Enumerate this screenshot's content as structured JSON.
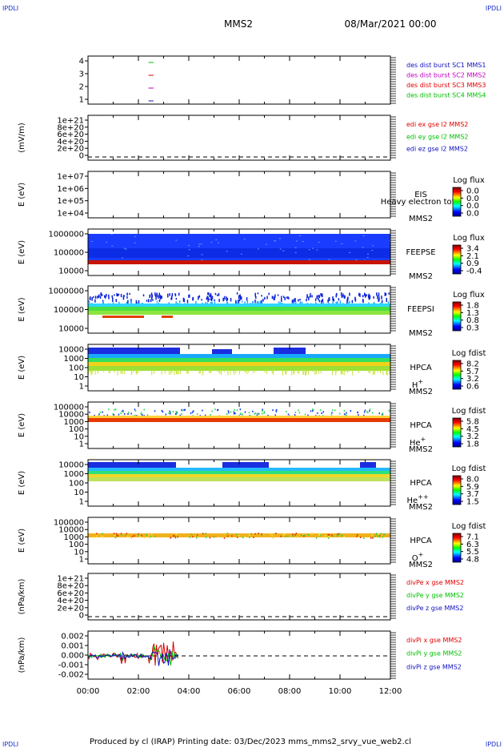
{
  "header": {
    "corner_labels": [
      "IPDLI",
      "IPDLI",
      "IPDLI",
      "IPDLI"
    ],
    "spacecraft": "MMS2",
    "date": "08/Mar/2021 00:00"
  },
  "footer": {
    "text": "Produced by cl (IRAP)   Printing date: 03/Dec/2023   mms_mms2_srvy_vue_web2.cl"
  },
  "colors": {
    "legend_red": "#e00000",
    "legend_green": "#00c000",
    "legend_blue": "#1010c0",
    "legend_magenta": "#c000c0",
    "band_red": "#c81400"
  },
  "chart_data": [
    {
      "id": "p1",
      "type": "line",
      "ylabel": "",
      "yticks": [
        "4",
        "3",
        "2",
        "1"
      ],
      "legend": [
        {
          "text": "des dist burst SC1 MMS1",
          "color": "#1010c0"
        },
        {
          "text": "des dist burst SC2 MMS2",
          "color": "#c000c0"
        },
        {
          "text": "des dist burst SC3 MMS3",
          "color": "#e00000"
        },
        {
          "text": "des dist burst SC4 MMS4",
          "color": "#00c000"
        }
      ],
      "series": [
        {
          "color": "#00c000",
          "y": 4,
          "x": [
            "02:24",
            "02:36"
          ]
        },
        {
          "color": "#e00000",
          "y": 3,
          "x": [
            "02:24",
            "02:36"
          ]
        },
        {
          "color": "#c000c0",
          "y": 2,
          "x": [
            "02:24",
            "02:36"
          ]
        },
        {
          "color": "#1010c0",
          "y": 1,
          "x": [
            "02:24",
            "02:36"
          ]
        }
      ]
    },
    {
      "id": "p2",
      "type": "line",
      "ylabel": "(mV/m)",
      "yticks": [
        "1e+21",
        "8e+20",
        "6e+20",
        "4e+20",
        "2e+20",
        "0"
      ],
      "zero_line": true,
      "legend": [
        {
          "text": "edi ex gse l2 MMS2",
          "color": "#e00000"
        },
        {
          "text": "edi ey gse l2 MMS2",
          "color": "#00c000"
        },
        {
          "text": "edi ez gse l2 MMS2",
          "color": "#1010c0"
        }
      ]
    },
    {
      "id": "p3",
      "type": "heatmap",
      "ylabel": "E (eV)",
      "yticks": [
        "1e+07",
        "1e+06",
        "1e+05",
        "1e+04"
      ],
      "inst": [
        "EIS",
        "MMS2"
      ],
      "overlay": "Heavy electron tof",
      "colorbar": {
        "label": "Log flux",
        "ticks": [
          "0.0",
          "0.0",
          "0.0",
          "0.0"
        ]
      }
    },
    {
      "id": "p4",
      "type": "heatmap",
      "ylabel": "E (eV)",
      "yticks": [
        "1000000",
        "100000",
        "10000"
      ],
      "inst": [
        "FEEPSE",
        "MMS2"
      ],
      "colorbar": {
        "label": "Log flux",
        "ticks": [
          "3.4",
          "2.1",
          "0.9",
          "-0.4"
        ]
      }
    },
    {
      "id": "p5",
      "type": "heatmap",
      "ylabel": "E (eV)",
      "yticks": [
        "1000000",
        "100000",
        "10000"
      ],
      "inst": [
        "FEEPSI",
        "MMS2"
      ],
      "colorbar": {
        "label": "Log flux",
        "ticks": [
          "1.8",
          "1.3",
          "0.8",
          "0.3"
        ]
      }
    },
    {
      "id": "p6",
      "type": "heatmap",
      "ylabel": "E (eV)",
      "yticks": [
        "10000",
        "1000",
        "100",
        "10",
        "1"
      ],
      "inst": [
        "HPCA",
        "MMS2"
      ],
      "species": "H",
      "charge": "+",
      "colorbar": {
        "label": "Log fdist",
        "ticks": [
          "8.2",
          "5.7",
          "3.2",
          "0.6"
        ]
      }
    },
    {
      "id": "p7",
      "type": "heatmap",
      "ylabel": "E (eV)",
      "yticks": [
        "100000",
        "10000",
        "1000",
        "100",
        "10",
        "1"
      ],
      "inst": [
        "HPCA",
        "MMS2"
      ],
      "species": "He",
      "charge": "+",
      "colorbar": {
        "label": "Log fdist",
        "ticks": [
          "5.8",
          "4.5",
          "3.2",
          "1.8"
        ]
      }
    },
    {
      "id": "p8",
      "type": "heatmap",
      "ylabel": "E (eV)",
      "yticks": [
        "10000",
        "1000",
        "100",
        "10",
        "1"
      ],
      "inst": [
        "HPCA",
        "MMS2"
      ],
      "species": "He",
      "charge": "++",
      "colorbar": {
        "label": "Log fdist",
        "ticks": [
          "8.0",
          "5.9",
          "3.7",
          "1.5"
        ]
      }
    },
    {
      "id": "p9",
      "type": "heatmap",
      "ylabel": "E (eV)",
      "yticks": [
        "100000",
        "10000",
        "1000",
        "100",
        "10",
        "1"
      ],
      "inst": [
        "HPCA",
        "MMS2"
      ],
      "species": "O",
      "charge": "+",
      "colorbar": {
        "label": "Log fdist",
        "ticks": [
          "7.1",
          "6.3",
          "5.5",
          "4.8"
        ]
      }
    },
    {
      "id": "p10",
      "type": "line",
      "ylabel": "(nPa/km)",
      "yticks": [
        "1e+21",
        "8e+20",
        "6e+20",
        "4e+20",
        "2e+20",
        "0"
      ],
      "zero_line": true,
      "legend": [
        {
          "text": "divPe x gse MMS2",
          "color": "#e00000"
        },
        {
          "text": "divPe y gse MMS2",
          "color": "#00c000"
        },
        {
          "text": "divPe z gse MMS2",
          "color": "#1010c0"
        }
      ]
    },
    {
      "id": "p11",
      "type": "line",
      "ylabel": "(nPa/km)",
      "yticks": [
        "0.002",
        "0.001",
        "0.000",
        "-0.001",
        "-0.002"
      ],
      "zero_line": true,
      "legend": [
        {
          "text": "divPi x gse MMS2",
          "color": "#e00000"
        },
        {
          "text": "divPi y gse MMS2",
          "color": "#00c000"
        },
        {
          "text": "divPi z gse MMS2",
          "color": "#1010c0"
        }
      ]
    }
  ],
  "xaxis": {
    "ticks": [
      "00:00",
      "02:00",
      "04:00",
      "06:00",
      "08:00",
      "10:00",
      "12:00"
    ],
    "range": [
      "00:00",
      "12:00"
    ]
  }
}
